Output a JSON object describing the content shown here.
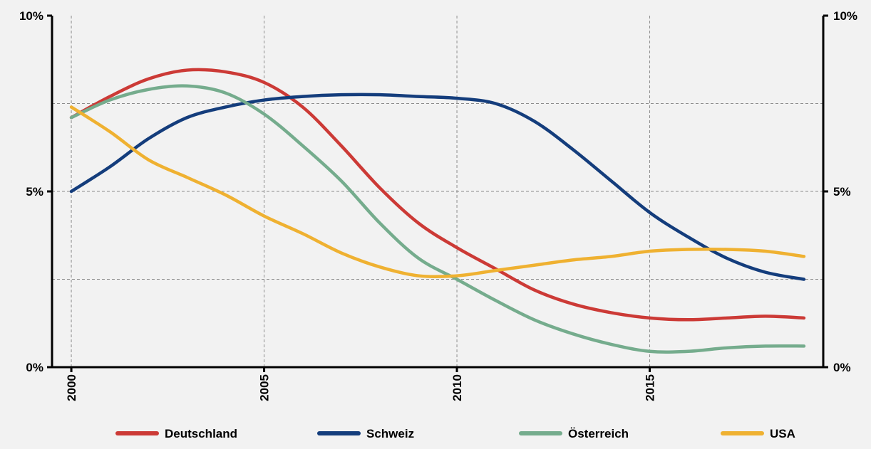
{
  "chart_data": {
    "type": "line",
    "title": "",
    "xlabel": "",
    "ylabel": "",
    "x": [
      2000,
      2001,
      2002,
      2003,
      2004,
      2005,
      2006,
      2007,
      2008,
      2009,
      2010,
      2011,
      2012,
      2013,
      2014,
      2015,
      2016,
      2017,
      2018,
      2019
    ],
    "xlim": [
      1999.5,
      2019.5
    ],
    "x_ticks": [
      "2000",
      "2005",
      "2010",
      "2015"
    ],
    "ylim": [
      0,
      10
    ],
    "y_ticks_left": [
      {
        "value": 0,
        "label": "0%"
      },
      {
        "value": 5,
        "label": "5%"
      },
      {
        "value": 10,
        "label": "10%"
      }
    ],
    "y_ticks_right": [
      {
        "value": 0,
        "label": "0%"
      },
      {
        "value": 5,
        "label": "5%"
      },
      {
        "value": 10,
        "label": "10%"
      }
    ],
    "grid": true,
    "gridlines_y": [
      2.5,
      5,
      7.5
    ],
    "legend_position": "bottom",
    "series": [
      {
        "name": "Deutschland",
        "color": "#cc3a36",
        "values": [
          7.1,
          7.7,
          8.2,
          8.45,
          8.4,
          8.1,
          7.4,
          6.3,
          5.1,
          4.1,
          3.4,
          2.8,
          2.2,
          1.8,
          1.55,
          1.4,
          1.35,
          1.4,
          1.45,
          1.4
        ]
      },
      {
        "name": "Schweiz",
        "color": "#143d7c",
        "values": [
          5.0,
          5.7,
          6.5,
          7.1,
          7.4,
          7.6,
          7.7,
          7.75,
          7.75,
          7.7,
          7.65,
          7.5,
          7.0,
          6.2,
          5.3,
          4.4,
          3.7,
          3.1,
          2.7,
          2.5
        ]
      },
      {
        "name": "Österreich",
        "color": "#75ac8d",
        "values": [
          7.1,
          7.6,
          7.9,
          8.0,
          7.8,
          7.2,
          6.3,
          5.3,
          4.1,
          3.1,
          2.5,
          1.9,
          1.35,
          0.95,
          0.65,
          0.45,
          0.45,
          0.55,
          0.6,
          0.6
        ]
      },
      {
        "name": "USA",
        "color": "#efb131",
        "values": [
          7.4,
          6.7,
          5.9,
          5.4,
          4.9,
          4.3,
          3.8,
          3.25,
          2.85,
          2.6,
          2.6,
          2.75,
          2.9,
          3.05,
          3.15,
          3.3,
          3.35,
          3.35,
          3.3,
          3.15
        ]
      }
    ]
  }
}
